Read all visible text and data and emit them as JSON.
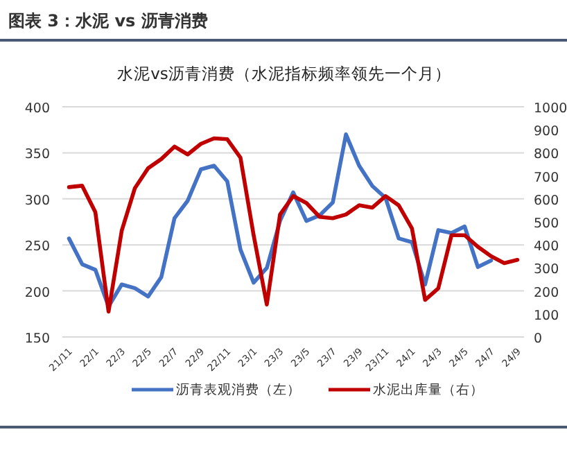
{
  "chart_data": {
    "type": "line",
    "title": "图表 3：水泥 vs 沥青消费",
    "subtitle": "水泥vs沥青消费（水泥指标频率领先一个月）",
    "categories": [
      "21/11",
      null,
      "22/1",
      null,
      "22/3",
      null,
      "22/5",
      null,
      "22/7",
      null,
      "22/9",
      null,
      "22/11",
      null,
      "23/1",
      null,
      "23/3",
      null,
      "23/5",
      null,
      "23/7",
      null,
      "23/9",
      null,
      "23/11",
      null,
      "24/1",
      null,
      "24/3",
      null,
      "24/5",
      null,
      "24/7",
      null,
      "24/9"
    ],
    "series": [
      {
        "name": "沥青表观消费（左）",
        "color": "#4472c4",
        "values": [
          257,
          229,
          223,
          183,
          207,
          203,
          194,
          215,
          279,
          298,
          332,
          336,
          319,
          245,
          209,
          225,
          276,
          307,
          276,
          282,
          296,
          370,
          336,
          314,
          301,
          257,
          253,
          207,
          266,
          263,
          270,
          226,
          233,
          null,
          null
        ]
      },
      {
        "name": "水泥出库量（右）",
        "color": "#c00000",
        "axis": "y2",
        "values": [
          651,
          657,
          542,
          110,
          462,
          647,
          733,
          773,
          827,
          793,
          839,
          863,
          859,
          779,
          442,
          141,
          532,
          612,
          582,
          522,
          516,
          532,
          572,
          562,
          612,
          572,
          472,
          161,
          211,
          442,
          442,
          392,
          351,
          321,
          335
        ]
      }
    ],
    "ylim": [
      150,
      400
    ],
    "yticks": [
      150,
      200,
      250,
      300,
      350,
      400
    ],
    "y2lim": [
      0,
      1000
    ],
    "y2ticks": [
      0,
      100,
      200,
      300,
      400,
      500,
      600,
      700,
      800,
      900,
      1000
    ],
    "grid": "y",
    "legend": "bottom",
    "marker": "none",
    "line_style": "solid"
  }
}
